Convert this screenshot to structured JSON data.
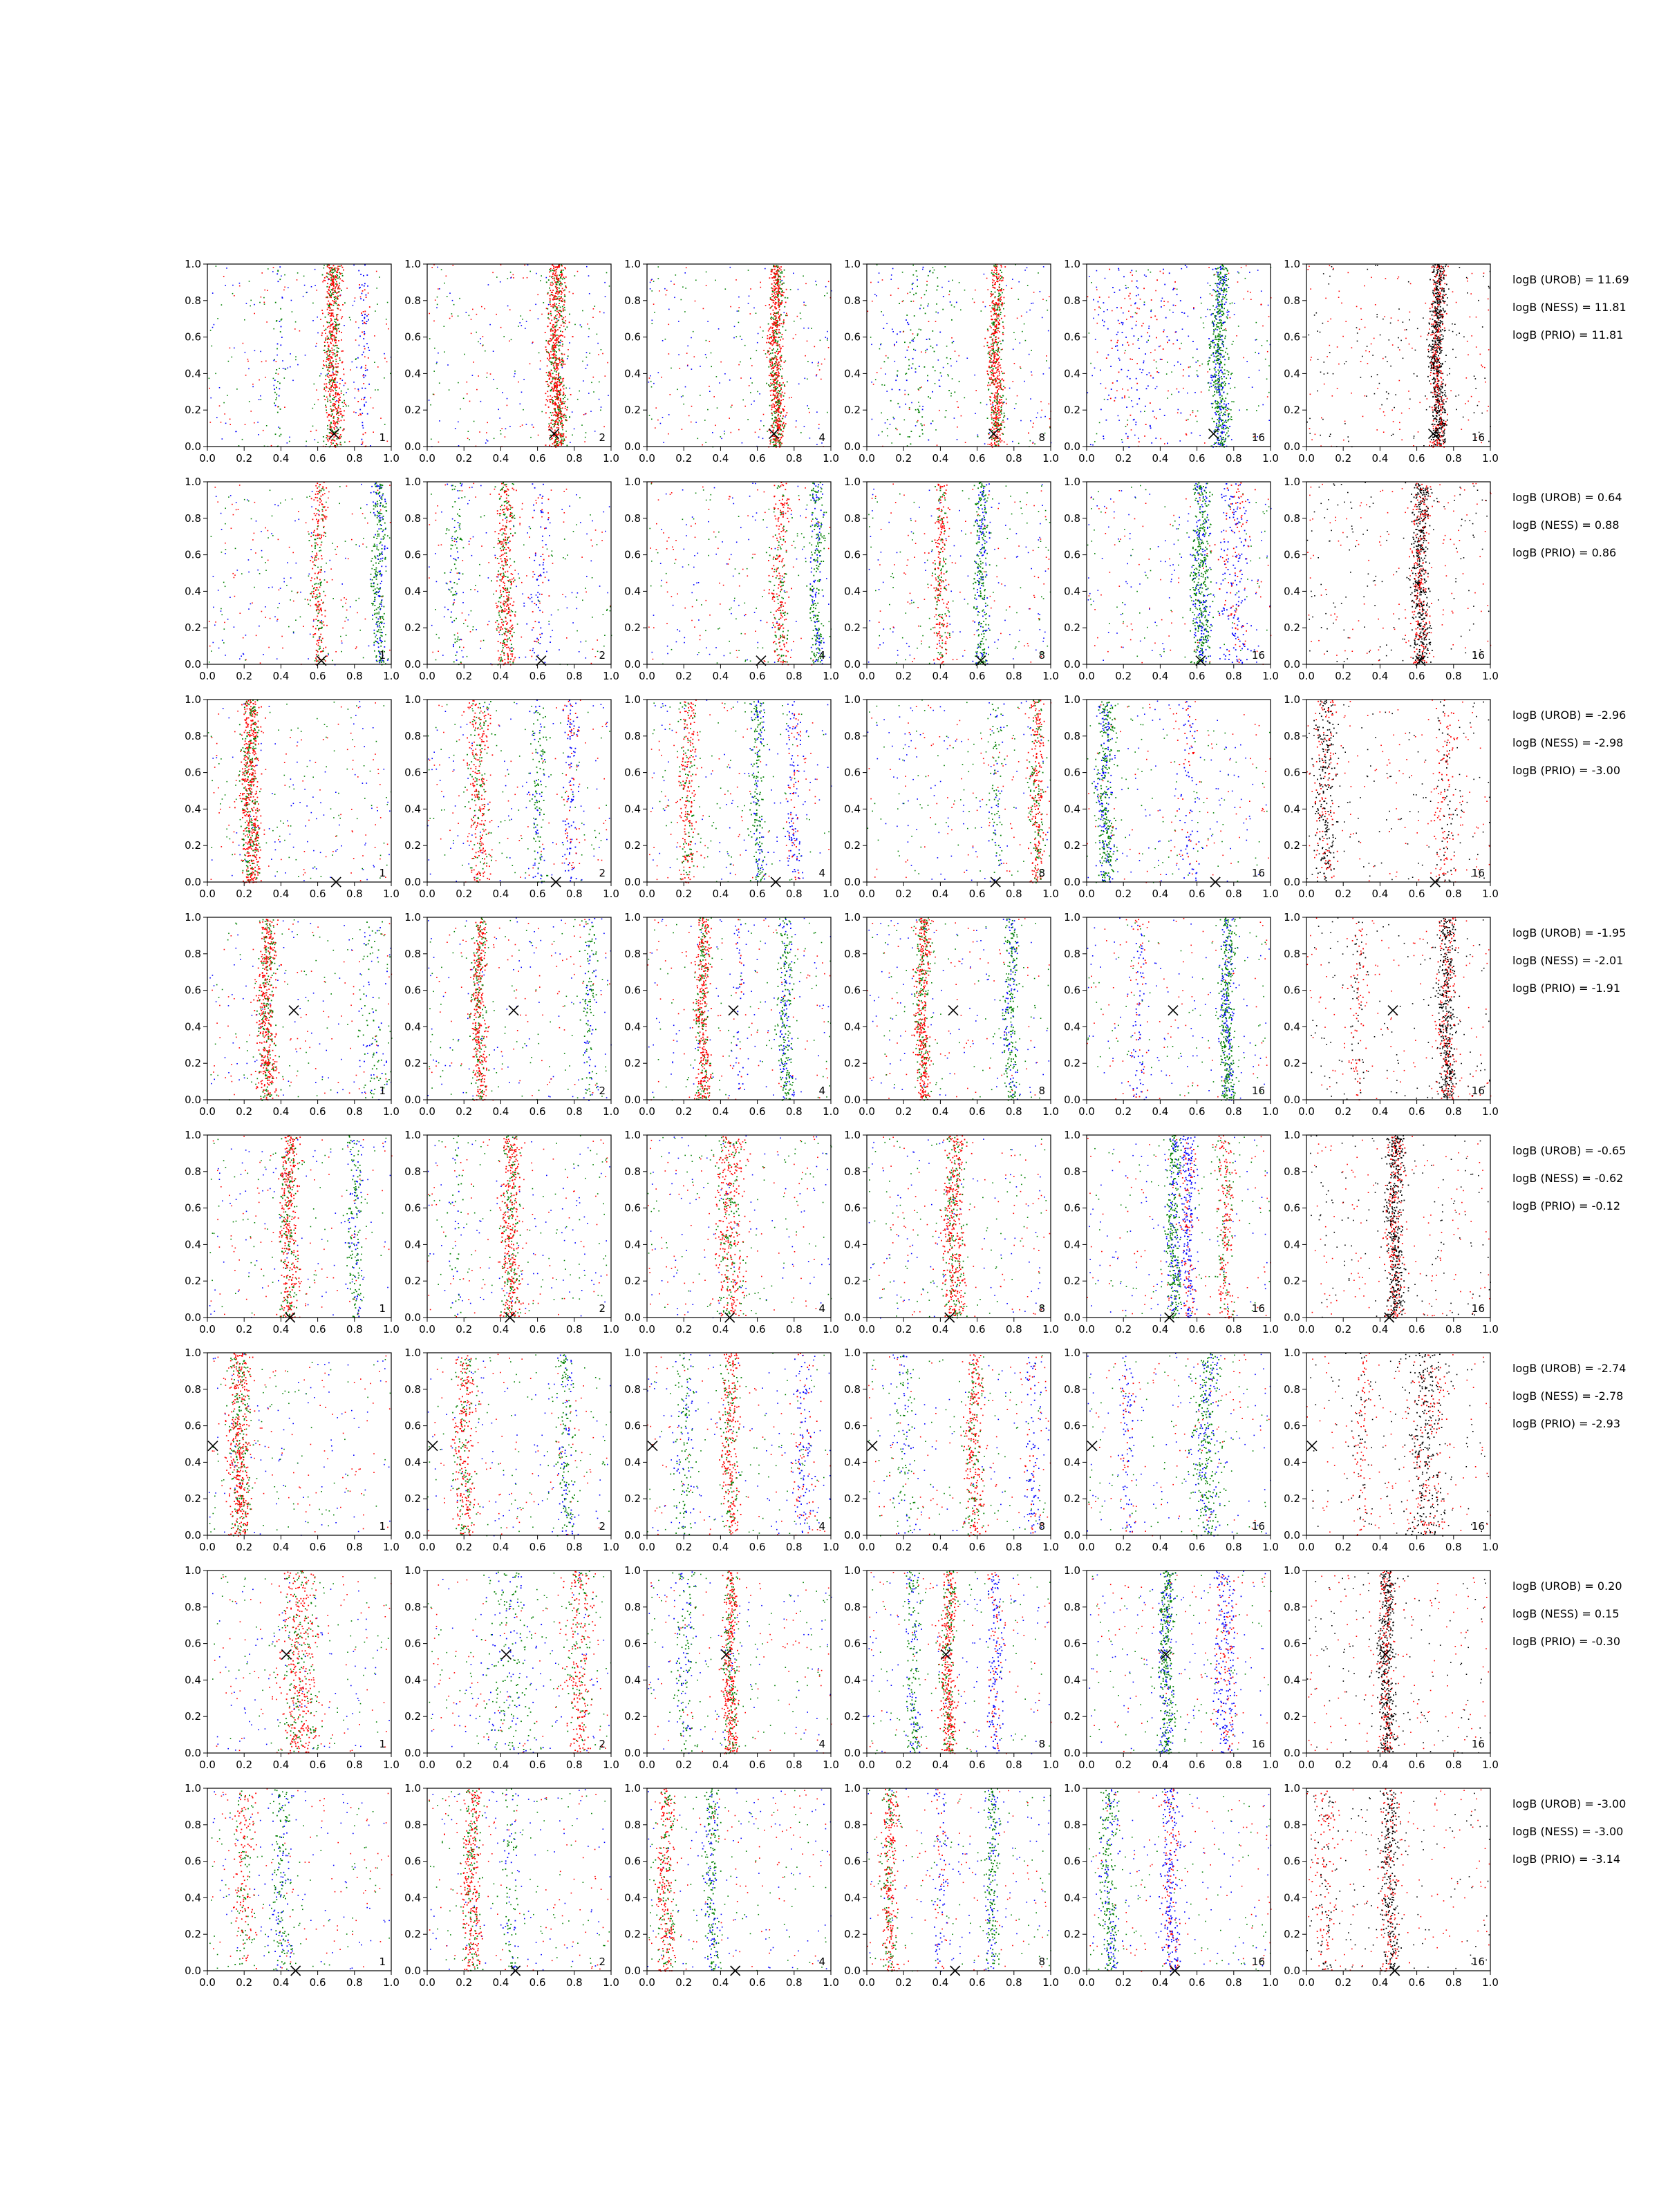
{
  "chart_data": {
    "type": "scatter",
    "rows": 8,
    "cols": 6,
    "xlim": [
      0,
      1
    ],
    "ylim": [
      0,
      1
    ],
    "xticks": [
      "0.0",
      "0.2",
      "0.4",
      "0.6",
      "0.8",
      "1.0"
    ],
    "yticks": [
      "0.0",
      "0.2",
      "0.4",
      "0.6",
      "0.8",
      "1.0"
    ],
    "grid": false,
    "panel_labels": [
      "1",
      "2",
      "4",
      "8",
      "16",
      "16"
    ],
    "series_colors": {
      "red": "#ff0000",
      "green": "#008000",
      "blue": "#0000ff",
      "black": "#000000"
    },
    "panel_series": [
      [
        "red",
        "green",
        "blue"
      ],
      [
        "red",
        "green",
        "blue"
      ],
      [
        "red",
        "green",
        "blue"
      ],
      [
        "red",
        "green",
        "blue"
      ],
      [
        "green",
        "blue",
        "red"
      ],
      [
        "black",
        "red"
      ]
    ],
    "row_data": [
      {
        "marker": [
          0.69,
          0.07
        ],
        "bands": [
          [
            {
              "c": 0.68,
              "w": 0.025,
              "n": 0.75
            },
            {
              "c": 0.38,
              "w": 0.01,
              "n": 0.05
            },
            {
              "c": 0.85,
              "w": 0.015,
              "n": 0.1
            }
          ],
          [
            {
              "c": 0.7,
              "w": 0.025,
              "n": 0.9
            }
          ],
          [
            {
              "c": 0.7,
              "w": 0.02,
              "n": 0.85
            }
          ],
          [
            {
              "c": 0.7,
              "w": 0.02,
              "n": 0.7
            },
            {
              "c": 0.3,
              "w": 0.1,
              "n": 0.15
            }
          ],
          [
            {
              "c": 0.72,
              "w": 0.025,
              "n": 0.7
            },
            {
              "c": 0.3,
              "w": 0.15,
              "n": 0.2
            }
          ],
          [
            {
              "c": 0.71,
              "w": 0.02,
              "n": 0.95
            }
          ]
        ],
        "logB": [
          "logB (UROB) = 11.69",
          "logB (NESS) = 11.81",
          "logB (PRIO) = 11.81"
        ]
      },
      {
        "marker": [
          0.62,
          0.02
        ],
        "bands": [
          [
            {
              "c": 0.6,
              "w": 0.02,
              "n": 0.3
            },
            {
              "c": 0.93,
              "w": 0.02,
              "n": 0.35
            }
          ],
          [
            {
              "c": 0.42,
              "w": 0.025,
              "n": 0.45
            },
            {
              "c": 0.15,
              "w": 0.02,
              "n": 0.1
            },
            {
              "c": 0.6,
              "w": 0.03,
              "n": 0.1
            }
          ],
          [
            {
              "c": 0.72,
              "w": 0.025,
              "n": 0.3
            },
            {
              "c": 0.92,
              "w": 0.02,
              "n": 0.3
            }
          ],
          [
            {
              "c": 0.4,
              "w": 0.02,
              "n": 0.3
            },
            {
              "c": 0.62,
              "w": 0.02,
              "n": 0.35
            }
          ],
          [
            {
              "c": 0.62,
              "w": 0.025,
              "n": 0.55
            },
            {
              "c": 0.8,
              "w": 0.04,
              "n": 0.25
            }
          ],
          [
            {
              "c": 0.62,
              "w": 0.025,
              "n": 0.7
            }
          ]
        ],
        "logB": [
          "logB (UROB) = 0.64",
          "logB (NESS) = 0.88",
          "logB (PRIO) = 0.86"
        ]
      },
      {
        "marker": [
          0.7,
          0.0
        ],
        "bands": [
          [
            {
              "c": 0.23,
              "w": 0.025,
              "n": 0.75
            }
          ],
          [
            {
              "c": 0.28,
              "w": 0.03,
              "n": 0.35
            },
            {
              "c": 0.6,
              "w": 0.02,
              "n": 0.15
            },
            {
              "c": 0.78,
              "w": 0.02,
              "n": 0.15
            }
          ],
          [
            {
              "c": 0.22,
              "w": 0.025,
              "n": 0.3
            },
            {
              "c": 0.6,
              "w": 0.02,
              "n": 0.25
            },
            {
              "c": 0.8,
              "w": 0.02,
              "n": 0.15
            }
          ],
          [
            {
              "c": 0.92,
              "w": 0.02,
              "n": 0.35
            },
            {
              "c": 0.7,
              "w": 0.02,
              "n": 0.1
            }
          ],
          [
            {
              "c": 0.1,
              "w": 0.025,
              "n": 0.45
            },
            {
              "c": 0.55,
              "w": 0.03,
              "n": 0.1
            }
          ],
          [
            {
              "c": 0.1,
              "w": 0.03,
              "n": 0.35
            },
            {
              "c": 0.75,
              "w": 0.03,
              "n": 0.15
            }
          ]
        ],
        "logB": [
          "logB (UROB) = -2.96",
          "logB (NESS) = -2.98",
          "logB (PRIO) = -3.00"
        ]
      },
      {
        "marker": [
          0.47,
          0.49
        ],
        "bands": [
          [
            {
              "c": 0.32,
              "w": 0.025,
              "n": 0.6
            },
            {
              "c": 0.9,
              "w": 0.04,
              "n": 0.1
            }
          ],
          [
            {
              "c": 0.28,
              "w": 0.02,
              "n": 0.5
            },
            {
              "c": 0.88,
              "w": 0.02,
              "n": 0.15
            }
          ],
          [
            {
              "c": 0.3,
              "w": 0.02,
              "n": 0.5
            },
            {
              "c": 0.75,
              "w": 0.02,
              "n": 0.3
            },
            {
              "c": 0.5,
              "w": 0.01,
              "n": 0.05
            }
          ],
          [
            {
              "c": 0.3,
              "w": 0.02,
              "n": 0.55
            },
            {
              "c": 0.78,
              "w": 0.02,
              "n": 0.3
            }
          ],
          [
            {
              "c": 0.76,
              "w": 0.02,
              "n": 0.5
            },
            {
              "c": 0.28,
              "w": 0.02,
              "n": 0.1
            }
          ],
          [
            {
              "c": 0.76,
              "w": 0.025,
              "n": 0.6
            },
            {
              "c": 0.28,
              "w": 0.02,
              "n": 0.1
            }
          ]
        ],
        "logB": [
          "logB (UROB) = -1.95",
          "logB (NESS) = -2.01",
          "logB (PRIO) = -1.91"
        ]
      },
      {
        "marker": [
          0.45,
          0.0
        ],
        "bands": [
          [
            {
              "c": 0.44,
              "w": 0.025,
              "n": 0.5
            },
            {
              "c": 0.8,
              "w": 0.02,
              "n": 0.2
            }
          ],
          [
            {
              "c": 0.45,
              "w": 0.025,
              "n": 0.5
            },
            {
              "c": 0.15,
              "w": 0.02,
              "n": 0.05
            }
          ],
          [
            {
              "c": 0.45,
              "w": 0.04,
              "n": 0.45
            }
          ],
          [
            {
              "c": 0.47,
              "w": 0.03,
              "n": 0.55
            }
          ],
          [
            {
              "c": 0.47,
              "w": 0.02,
              "n": 0.4
            },
            {
              "c": 0.55,
              "w": 0.02,
              "n": 0.3
            },
            {
              "c": 0.75,
              "w": 0.02,
              "n": 0.25
            }
          ],
          [
            {
              "c": 0.48,
              "w": 0.025,
              "n": 0.7
            }
          ]
        ],
        "logB": [
          "logB (UROB) = -0.65",
          "logB (NESS) = -0.62",
          "logB (PRIO) = -0.12"
        ]
      },
      {
        "marker": [
          0.03,
          0.49
        ],
        "bands": [
          [
            {
              "c": 0.17,
              "w": 0.03,
              "n": 0.6
            }
          ],
          [
            {
              "c": 0.2,
              "w": 0.03,
              "n": 0.35
            },
            {
              "c": 0.75,
              "w": 0.025,
              "n": 0.2
            }
          ],
          [
            {
              "c": 0.45,
              "w": 0.025,
              "n": 0.35
            },
            {
              "c": 0.2,
              "w": 0.03,
              "n": 0.15
            },
            {
              "c": 0.85,
              "w": 0.03,
              "n": 0.15
            }
          ],
          [
            {
              "c": 0.58,
              "w": 0.025,
              "n": 0.35
            },
            {
              "c": 0.2,
              "w": 0.03,
              "n": 0.1
            },
            {
              "c": 0.9,
              "w": 0.02,
              "n": 0.1
            }
          ],
          [
            {
              "c": 0.65,
              "w": 0.04,
              "n": 0.4
            },
            {
              "c": 0.22,
              "w": 0.02,
              "n": 0.1
            }
          ],
          [
            {
              "c": 0.65,
              "w": 0.05,
              "n": 0.4
            },
            {
              "c": 0.3,
              "w": 0.02,
              "n": 0.1
            }
          ]
        ],
        "logB": [
          "logB (UROB) = -2.74",
          "logB (NESS) = -2.78",
          "logB (PRIO) = -2.93"
        ]
      },
      {
        "marker": [
          0.43,
          0.54
        ],
        "bands": [
          [
            {
              "c": 0.5,
              "w": 0.05,
              "n": 0.5
            }
          ],
          [
            {
              "c": 0.82,
              "w": 0.04,
              "n": 0.3
            },
            {
              "c": 0.45,
              "w": 0.08,
              "n": 0.2
            }
          ],
          [
            {
              "c": 0.45,
              "w": 0.02,
              "n": 0.5
            },
            {
              "c": 0.2,
              "w": 0.03,
              "n": 0.15
            }
          ],
          [
            {
              "c": 0.44,
              "w": 0.02,
              "n": 0.5
            },
            {
              "c": 0.25,
              "w": 0.02,
              "n": 0.2
            },
            {
              "c": 0.7,
              "w": 0.02,
              "n": 0.2
            }
          ],
          [
            {
              "c": 0.43,
              "w": 0.02,
              "n": 0.45
            },
            {
              "c": 0.75,
              "w": 0.03,
              "n": 0.3
            }
          ],
          [
            {
              "c": 0.43,
              "w": 0.02,
              "n": 0.6
            }
          ]
        ],
        "logB": [
          "logB (UROB) = 0.20",
          "logB (NESS) = 0.15",
          "logB (PRIO) = -0.30"
        ]
      },
      {
        "marker": [
          0.48,
          0.0
        ],
        "bands": [
          [
            {
              "c": 0.2,
              "w": 0.03,
              "n": 0.2
            },
            {
              "c": 0.4,
              "w": 0.03,
              "n": 0.2
            }
          ],
          [
            {
              "c": 0.24,
              "w": 0.025,
              "n": 0.4
            },
            {
              "c": 0.45,
              "w": 0.02,
              "n": 0.1
            }
          ],
          [
            {
              "c": 0.1,
              "w": 0.025,
              "n": 0.35
            },
            {
              "c": 0.35,
              "w": 0.02,
              "n": 0.25
            }
          ],
          [
            {
              "c": 0.12,
              "w": 0.02,
              "n": 0.35
            },
            {
              "c": 0.68,
              "w": 0.02,
              "n": 0.25
            },
            {
              "c": 0.4,
              "w": 0.02,
              "n": 0.1
            }
          ],
          [
            {
              "c": 0.12,
              "w": 0.025,
              "n": 0.3
            },
            {
              "c": 0.45,
              "w": 0.025,
              "n": 0.3
            }
          ],
          [
            {
              "c": 0.45,
              "w": 0.025,
              "n": 0.4
            },
            {
              "c": 0.1,
              "w": 0.03,
              "n": 0.15
            }
          ]
        ],
        "logB": [
          "logB (UROB) = -3.00",
          "logB (NESS) = -3.00",
          "logB (PRIO) = -3.14"
        ]
      }
    ]
  }
}
